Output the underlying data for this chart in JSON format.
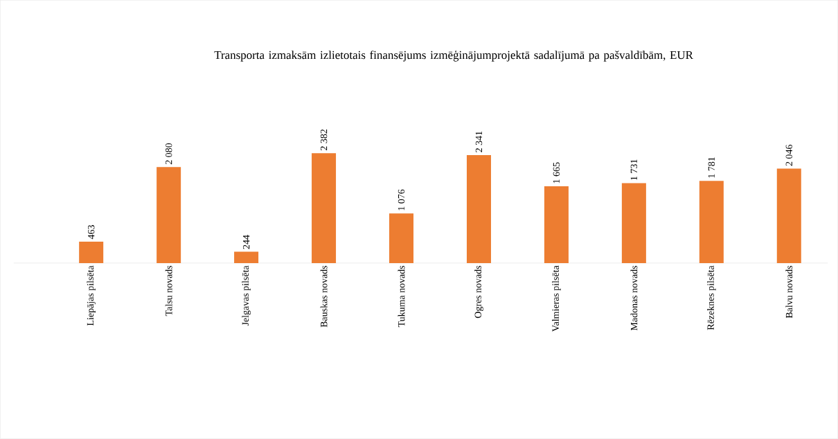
{
  "chart_data": {
    "type": "bar",
    "title": "Transporta izmaksām izlietotais finansējums izmēģinājumprojektā sadalījumā pa pašvaldībām, EUR",
    "categories": [
      "Liepājas pilsēta",
      "Talsu novads",
      "Jelgavas pilsēta",
      "Bauskas novads",
      "Tukuma novads",
      "Ogres novads",
      "Valmieras pilsēta",
      "Madonas novads",
      "Rēzeknes pilsēta",
      "Balvu novads"
    ],
    "values": [
      463,
      2080,
      244,
      2382,
      1076,
      2341,
      1665,
      1731,
      1781,
      2046
    ],
    "value_labels": [
      "463",
      "2 080",
      "244",
      "2 382",
      "1 076",
      "2 341",
      "1 665",
      "1 731",
      "1 781",
      "2 046"
    ],
    "color": "#ed7d31"
  }
}
